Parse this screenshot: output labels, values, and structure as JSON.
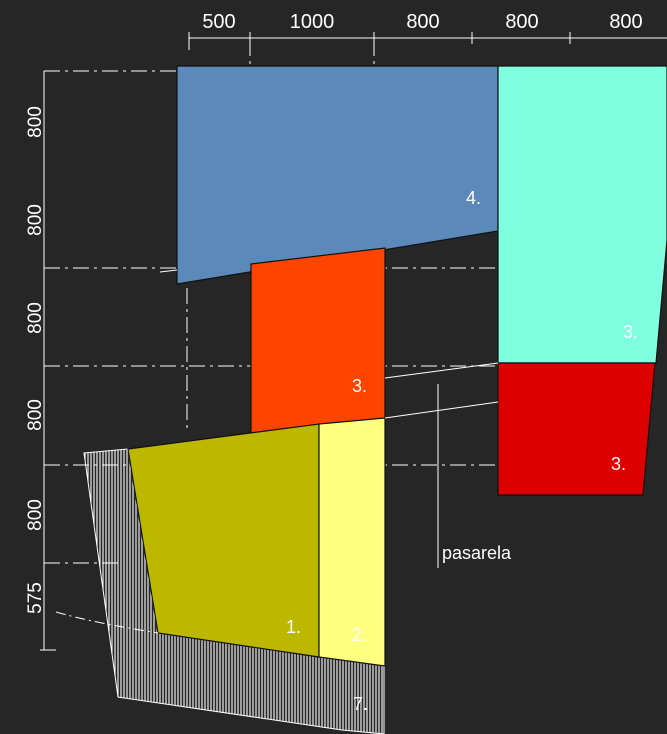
{
  "colors": {
    "background": "#262626",
    "line": "#ffffff",
    "zone_4": "#5b8aba",
    "zone_3_cyan": "#7fffe0",
    "zone_3_orange": "#ff4400",
    "zone_3_red": "#dd0000",
    "zone_1": "#bcb800",
    "zone_2": "#ffff80",
    "hatch": "#ffffff"
  },
  "top_dimensions": [
    "500",
    "1000",
    "800",
    "800",
    "800"
  ],
  "left_dimensions": [
    "800",
    "800",
    "800",
    "800",
    "800",
    "575"
  ],
  "zones": {
    "blue": "4.",
    "cyan": "3.",
    "orange": "3.",
    "red": "3.",
    "olive": "1.",
    "pale_yellow": "2.",
    "hatched": "7."
  },
  "annotation": "pasarela"
}
